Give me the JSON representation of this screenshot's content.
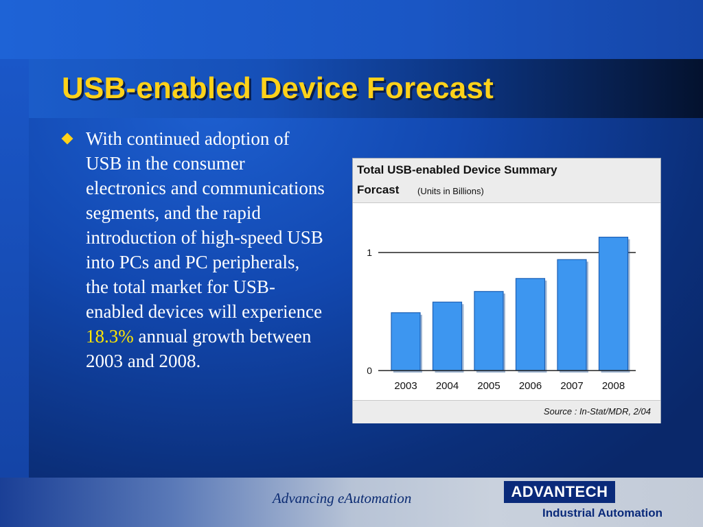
{
  "slide": {
    "title": "USB-enabled Device Forecast",
    "bullet_pre": "With continued adoption of USB in the consumer electronics and communications segments, and the rapid introduction of high-speed USB into PCs and PC peripherals, the total market for USB-enabled devices will experience",
    "bullet_highlight": "18.3%",
    "bullet_post": "annual growth between 2003 and 2008.",
    "colors": {
      "title": "#ffd21a",
      "highlight": "#ffe600",
      "background": "#1248b0"
    }
  },
  "chart_data": {
    "type": "bar",
    "title": "Total USB-enabled Device Summary",
    "title_line2": "Forcast",
    "subtitle": "(Units in Billions)",
    "categories": [
      "2003",
      "2004",
      "2005",
      "2006",
      "2007",
      "2008"
    ],
    "values": [
      0.49,
      0.58,
      0.67,
      0.78,
      0.94,
      1.13
    ],
    "yticks": [
      0,
      1
    ],
    "ylim": [
      0,
      1.2
    ],
    "reference_line": 1,
    "bar_color": "#3d96f0",
    "source": "Source : In-Stat/MDR, 2/04",
    "grid": false,
    "legend": "none"
  },
  "footer": {
    "tagline": "Advancing eAutomation",
    "logo": "ADVANTECH",
    "logo_sub": "Industrial Automation"
  }
}
